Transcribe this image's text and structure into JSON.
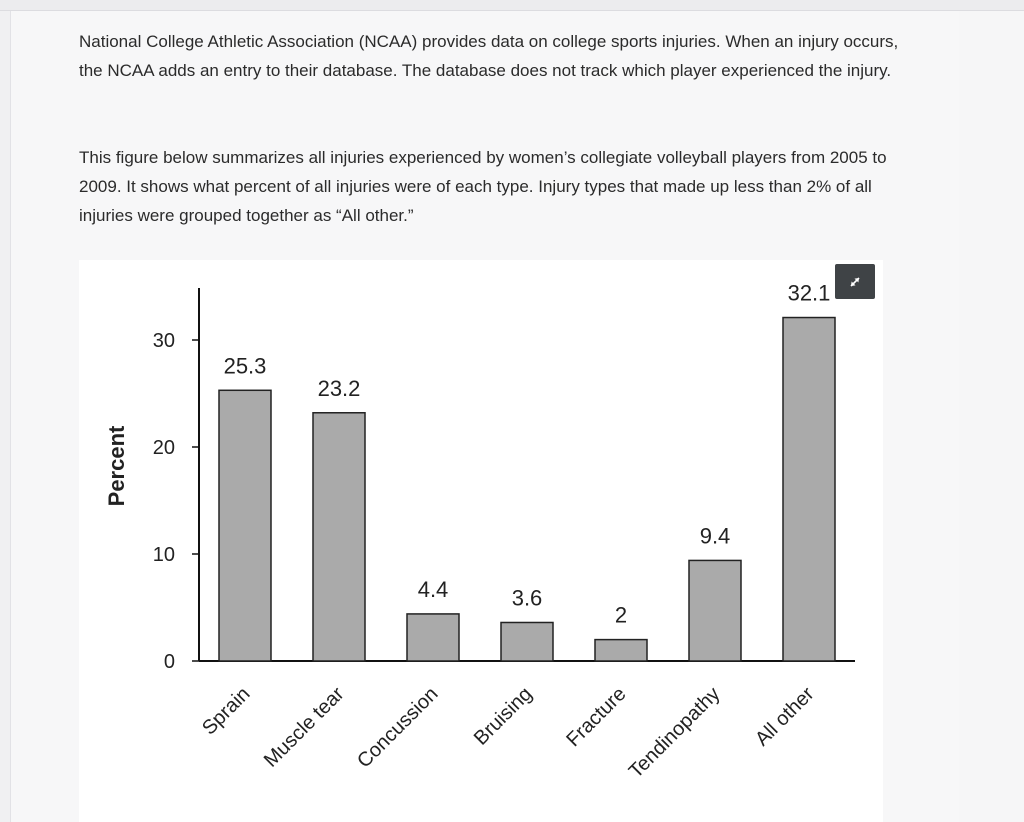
{
  "intro": {
    "paragraph1": "National College Athletic Association (NCAA) provides data on college sports injuries. When an injury occurs, the NCAA adds an entry to their database. The database does not track which player experienced the injury.",
    "paragraph2": "This figure below summarizes all injuries experienced by women’s collegiate volleyball players from 2005 to 2009. It shows what percent of all injuries were of each type. Injury types that made up less than 2% of all injuries were grouped together as “All other.”"
  },
  "expand_icon": "expand-arrows-icon",
  "chart_data": {
    "type": "bar",
    "title": "",
    "xlabel": "",
    "ylabel": "Percent",
    "categories": [
      "Sprain",
      "Muscle tear",
      "Concussion",
      "Bruising",
      "Fracture",
      "Tendinopathy",
      "All other"
    ],
    "values": [
      25.3,
      23.2,
      4.4,
      3.6,
      2,
      9.4,
      32.1
    ],
    "value_labels": [
      "25.3",
      "23.2",
      "4.4",
      "3.6",
      "2",
      "9.4",
      "32.1"
    ],
    "yticks": [
      0,
      10,
      20,
      30
    ],
    "ylim": [
      0,
      35
    ],
    "grid": false,
    "legend": "none",
    "bar_fill": "#aaaaaa",
    "bar_stroke": "#222222"
  }
}
